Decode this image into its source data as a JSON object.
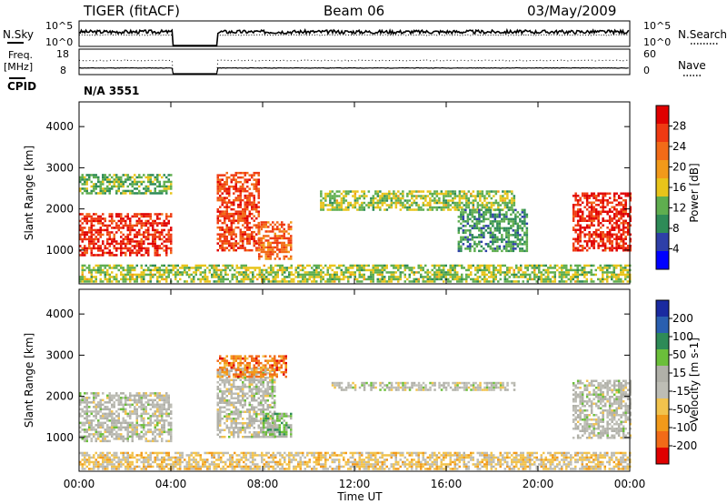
{
  "header": {
    "radar": "TIGER (fitACF)",
    "beam": "Beam 06",
    "date": "03/May/2009"
  },
  "noise_panel": {
    "left_label": "N.Sky",
    "left_ticks": [
      "10^5",
      "10^0"
    ],
    "right_ticks": [
      "10^5",
      "10^0"
    ],
    "right_label": "N.Search"
  },
  "freq_panel": {
    "left_label_line1": "Freq.",
    "left_label_line2": "[MHz]",
    "left_ticks": [
      "18",
      "8"
    ],
    "right_ticks": [
      "60",
      "0"
    ],
    "right_label": "Nave"
  },
  "cpid": {
    "label": "CPID",
    "value": "N/A 3551"
  },
  "colors": {
    "power_scale": [
      "#0000ff",
      "#2e3fa8",
      "#2e8b57",
      "#5fae4f",
      "#e8c41a",
      "#f29a1a",
      "#f26b18",
      "#ef3a12",
      "#e00000"
    ],
    "velocity_scale": [
      "#e00000",
      "#f26b18",
      "#f29a1a",
      "#f2c34d",
      "#bdbdb5",
      "#b0b0a8",
      "#6bbf3a",
      "#2e8b57",
      "#2a5fb0",
      "#1a2aa0"
    ]
  },
  "chart_data": [
    {
      "type": "heatmap",
      "title": "",
      "xlabel": "Time UT",
      "ylabel": "Slant Range [km]",
      "x_ticks": [
        "00:00",
        "04:00",
        "08:00",
        "12:00",
        "16:00",
        "20:00",
        "00:00"
      ],
      "x_range_hours": [
        0,
        24
      ],
      "y_ticks": [
        1000,
        2000,
        3000,
        4000
      ],
      "ylim": [
        180,
        4600
      ],
      "colorbar": {
        "label": "Power [dB]",
        "ticks": [
          4,
          8,
          12,
          16,
          20,
          24,
          28
        ],
        "range": [
          0,
          32
        ]
      },
      "data_gaps_hours": [
        [
          4.05,
          6.0
        ]
      ],
      "echo_regions": [
        {
          "t_start": 0.0,
          "t_end": 4.05,
          "r_start": 900,
          "r_end": 1900,
          "level": 28
        },
        {
          "t_start": 0.0,
          "t_end": 4.05,
          "r_start": 2400,
          "r_end": 2850,
          "level": 12
        },
        {
          "t_start": 6.0,
          "t_end": 7.8,
          "r_start": 1000,
          "r_end": 2900,
          "level": 26
        },
        {
          "t_start": 7.8,
          "t_end": 9.2,
          "r_start": 800,
          "r_end": 1700,
          "level": 24
        },
        {
          "t_start": 10.5,
          "t_end": 19.0,
          "r_start": 2000,
          "r_end": 2450,
          "level": 14
        },
        {
          "t_start": 16.5,
          "t_end": 19.5,
          "r_start": 1000,
          "r_end": 2000,
          "level": 10
        },
        {
          "t_start": 21.5,
          "t_end": 24.0,
          "r_start": 1000,
          "r_end": 2400,
          "level": 28
        },
        {
          "t_start": 0.0,
          "t_end": 24.0,
          "r_start": 250,
          "r_end": 650,
          "level": 14
        }
      ]
    },
    {
      "type": "heatmap",
      "title": "",
      "xlabel": "Time UT",
      "ylabel": "Slant Range [km]",
      "x_ticks": [
        "00:00",
        "04:00",
        "08:00",
        "12:00",
        "16:00",
        "20:00",
        "00:00"
      ],
      "x_range_hours": [
        0,
        24
      ],
      "y_ticks": [
        1000,
        2000,
        3000,
        4000
      ],
      "ylim": [
        180,
        4600
      ],
      "colorbar": {
        "label": "Velocity [m s-1]",
        "ticks": [
          200,
          100,
          50,
          15,
          -15,
          -50,
          -100,
          -200
        ],
        "range": [
          -250,
          250
        ]
      },
      "data_gaps_hours": [
        [
          4.05,
          6.0
        ]
      ],
      "echo_regions": [
        {
          "t_start": 0.0,
          "t_end": 4.05,
          "r_start": 900,
          "r_end": 2100,
          "level": 0
        },
        {
          "t_start": 6.0,
          "t_end": 8.5,
          "r_start": 1000,
          "r_end": 2700,
          "level": 0
        },
        {
          "t_start": 8.0,
          "t_end": 9.2,
          "r_start": 1000,
          "r_end": 1600,
          "level": 60
        },
        {
          "t_start": 11.0,
          "t_end": 19.0,
          "r_start": 2150,
          "r_end": 2350,
          "level": 0
        },
        {
          "t_start": 21.5,
          "t_end": 24.0,
          "r_start": 1000,
          "r_end": 2400,
          "level": 0
        },
        {
          "t_start": 6.0,
          "t_end": 9.0,
          "r_start": 2500,
          "r_end": 3000,
          "level": -150
        },
        {
          "t_start": 0.0,
          "t_end": 24.0,
          "r_start": 250,
          "r_end": 650,
          "level": -60
        }
      ]
    }
  ]
}
